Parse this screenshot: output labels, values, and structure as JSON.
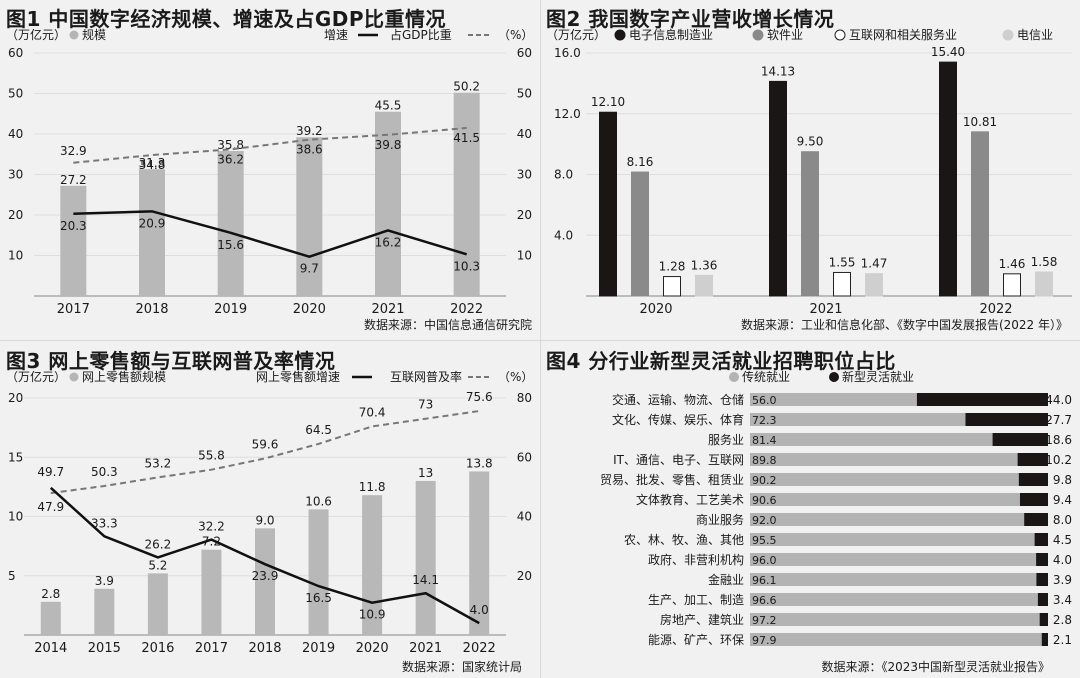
{
  "chart_data": [
    {
      "id": "fig1",
      "type": "bar",
      "title": "图1 中国数字经济规模、增速及占GDP比重情况",
      "legend": {
        "left_unit": "（万亿元）",
        "bar_label": "规模",
        "line1_label": "增速",
        "line2_label": "占GDP比重",
        "right_unit": "（%）"
      },
      "categories": [
        "2017",
        "2018",
        "2019",
        "2020",
        "2021",
        "2022"
      ],
      "ylim": [
        0,
        60
      ],
      "y_ticks": [
        "10",
        "20",
        "30",
        "40",
        "50",
        "60"
      ],
      "series": [
        {
          "name": "规模",
          "kind": "bar",
          "values": [
            27.2,
            31.3,
            35.8,
            39.2,
            45.5,
            50.2
          ],
          "labels": [
            "27.2",
            "31.3",
            "35.8",
            "39.2",
            "45.5",
            "50.2"
          ]
        },
        {
          "name": "增速",
          "kind": "line",
          "values": [
            20.3,
            20.9,
            15.6,
            9.7,
            16.2,
            10.3
          ],
          "labels": [
            "20.3",
            "20.9",
            "15.6",
            "9.7",
            "16.2",
            "10.3"
          ]
        },
        {
          "name": "占GDP比重",
          "kind": "dashed-line",
          "values": [
            32.9,
            34.8,
            36.2,
            38.6,
            39.8,
            41.5
          ],
          "labels": [
            "32.9",
            "34.8",
            "36.2",
            "38.6",
            "39.8",
            "41.5"
          ]
        }
      ],
      "source": "数据来源：中国信息通信研究院"
    },
    {
      "id": "fig2",
      "type": "bar",
      "title": "图2 我国数字产业营收增长情况",
      "legend": {
        "unit": "（万亿元）"
      },
      "categories": [
        "2020",
        "2021",
        "2022"
      ],
      "ylim": [
        0,
        16
      ],
      "y_ticks": [
        "4.0",
        "8.0",
        "12.0",
        "16.0"
      ],
      "series": [
        {
          "name": "电子信息制造业",
          "color": "#1b1616",
          "stroke": "#1b1616",
          "values": [
            12.1,
            14.13,
            15.4
          ],
          "labels": [
            "12.10",
            "14.13",
            "15.40"
          ]
        },
        {
          "name": "软件业",
          "color": "#8a8a8a",
          "stroke": "#8a8a8a",
          "values": [
            8.16,
            9.5,
            10.81
          ],
          "labels": [
            "8.16",
            "9.50",
            "10.81"
          ]
        },
        {
          "name": "互联网和相关服务业",
          "color": "#ffffff",
          "stroke": "#222222",
          "values": [
            1.28,
            1.55,
            1.46
          ],
          "labels": [
            "1.28",
            "1.55",
            "1.46"
          ]
        },
        {
          "name": "电信业",
          "color": "#cfcfcf",
          "stroke": "#cfcfcf",
          "values": [
            1.36,
            1.47,
            1.58
          ],
          "labels": [
            "1.36",
            "1.47",
            "1.58"
          ]
        }
      ],
      "source": "数据来源：工业和信息化部、《数字中国发展报告(2022 年）》"
    },
    {
      "id": "fig3",
      "type": "bar",
      "title": "图3 网上零售额与互联网普及率情况",
      "legend": {
        "left_unit": "（万亿元）",
        "bar_label": "网上零售额规模",
        "line1_label": "网上零售额增速",
        "line2_label": "互联网普及率",
        "right_unit": "（%）"
      },
      "categories": [
        "2014",
        "2015",
        "2016",
        "2017",
        "2018",
        "2019",
        "2020",
        "2021",
        "2022"
      ],
      "ylim": [
        0,
        20
      ],
      "y_ticks": [
        "5",
        "10",
        "15",
        "20"
      ],
      "y2lim": [
        0,
        80
      ],
      "y2_ticks": [
        "20",
        "40",
        "60",
        "80"
      ],
      "series": [
        {
          "name": "网上零售额规模",
          "kind": "bar",
          "values": [
            2.8,
            3.9,
            5.2,
            7.2,
            9.0,
            10.6,
            11.8,
            13.0,
            13.8
          ],
          "labels": [
            "2.8",
            "3.9",
            "5.2",
            "7.2",
            "9.0",
            "10.6",
            "11.8",
            "13",
            "13.8"
          ]
        },
        {
          "name": "网上零售额增速",
          "kind": "line",
          "values": [
            49.7,
            33.3,
            26.2,
            32.2,
            23.9,
            16.5,
            10.9,
            14.1,
            4.0
          ],
          "labels": [
            "49.7",
            "33.3",
            "26.2",
            "32.2",
            "23.9",
            "16.5",
            "10.9",
            "14.1",
            "4.0"
          ]
        },
        {
          "name": "互联网普及率",
          "kind": "dashed-line",
          "values": [
            47.9,
            50.3,
            53.2,
            55.8,
            59.6,
            64.5,
            70.4,
            73.0,
            75.6
          ],
          "labels": [
            "47.9",
            "50.3",
            "53.2",
            "55.8",
            "59.6",
            "64.5",
            "70.4",
            "73",
            "75.6"
          ]
        }
      ],
      "source": "数据来源：国家统计局"
    },
    {
      "id": "fig4",
      "type": "bar",
      "orientation": "horizontal-stacked",
      "title": "图4 分行业新型灵活就业招聘职位占比",
      "legend": {
        "traditional": "传统就业",
        "flexible": "新型灵活就业"
      },
      "categories": [
        "交通、运输、物流、仓储",
        "文化、传媒、娱乐、体育",
        "服务业",
        "IT、通信、电子、互联网",
        "贸易、批发、零售、租赁业",
        "文体教育、工艺美术",
        "商业服务",
        "农、林、牧、渔、其他",
        "政府、非营利机构",
        "金融业",
        "生产、加工、制造",
        "房地产、建筑业",
        "能源、矿产、环保"
      ],
      "series": [
        {
          "name": "传统就业",
          "color": "#b3b3b3",
          "values": [
            56.0,
            72.3,
            81.4,
            89.8,
            90.2,
            90.6,
            92.0,
            95.5,
            96.0,
            96.1,
            96.6,
            97.2,
            97.9
          ],
          "labels": [
            "56.0",
            "72.3",
            "81.4",
            "89.8",
            "90.2",
            "90.6",
            "92.0",
            "95.5",
            "96.0",
            "96.1",
            "96.6",
            "97.2",
            "97.9"
          ]
        },
        {
          "name": "新型灵活就业",
          "color": "#1b1616",
          "values": [
            44.0,
            27.7,
            18.6,
            10.2,
            9.8,
            9.4,
            8.0,
            4.5,
            4.0,
            3.9,
            3.4,
            2.8,
            2.1
          ],
          "labels": [
            "44.0",
            "27.7",
            "18.6",
            "10.2",
            "9.8",
            "9.4",
            "8.0",
            "4.5",
            "4.0",
            "3.9",
            "3.4",
            "2.8",
            "2.1"
          ]
        }
      ],
      "source": "数据来源：《2023中国新型灵活就业报告》"
    }
  ]
}
